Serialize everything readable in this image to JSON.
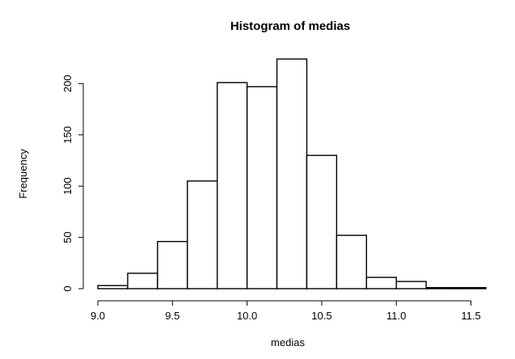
{
  "chart_data": {
    "type": "bar",
    "title": "Histogram of medias",
    "xlabel": "medias",
    "ylabel": "Frequency",
    "bins": [
      {
        "from": 9.0,
        "to": 9.2,
        "count": 3
      },
      {
        "from": 9.2,
        "to": 9.4,
        "count": 15
      },
      {
        "from": 9.4,
        "to": 9.6,
        "count": 46
      },
      {
        "from": 9.6,
        "to": 9.8,
        "count": 105
      },
      {
        "from": 9.8,
        "to": 10.0,
        "count": 201
      },
      {
        "from": 10.0,
        "to": 10.2,
        "count": 197
      },
      {
        "from": 10.2,
        "to": 10.4,
        "count": 224
      },
      {
        "from": 10.4,
        "to": 10.6,
        "count": 130
      },
      {
        "from": 10.6,
        "to": 10.8,
        "count": 52
      },
      {
        "from": 10.8,
        "to": 11.0,
        "count": 11
      },
      {
        "from": 11.0,
        "to": 11.2,
        "count": 7
      },
      {
        "from": 11.2,
        "to": 11.4,
        "count": 1
      },
      {
        "from": 11.4,
        "to": 11.6,
        "count": 1
      }
    ],
    "xlim": [
      9.0,
      11.6
    ],
    "ylim": [
      0,
      224
    ],
    "xticks": [
      9.0,
      9.5,
      10.0,
      10.5,
      11.0,
      11.5
    ],
    "xtick_labels": [
      "9.0",
      "9.5",
      "10.0",
      "10.5",
      "11.0",
      "11.5"
    ],
    "yticks": [
      0,
      50,
      100,
      150,
      200
    ],
    "ytick_labels": [
      "0",
      "50",
      "100",
      "150",
      "200"
    ],
    "bar_fill": "#ffffff",
    "bar_stroke": "#000000",
    "grid": false,
    "legend": "none"
  }
}
